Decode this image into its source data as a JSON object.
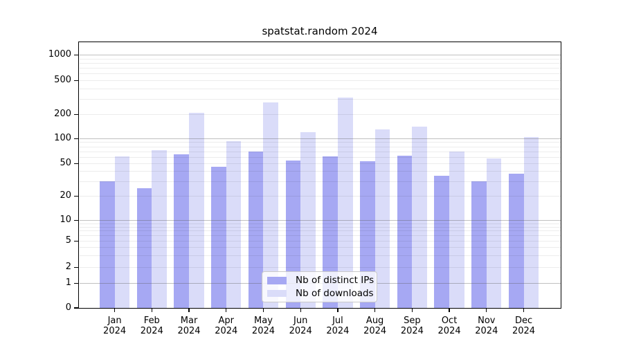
{
  "title": "spatstat.random 2024",
  "colors": {
    "distinct_ips": "#a6a8f3",
    "downloads": "#dadcf9",
    "grid_major": "rgba(90,90,90,0.38)",
    "grid_minor": "rgba(0,0,0,0.075)",
    "axis": "#000000",
    "legend_border": "#c9c9c9"
  },
  "legend": {
    "items": [
      "Nb of distinct IPs",
      "Nb of downloads"
    ]
  },
  "chart_data": {
    "type": "bar",
    "title": "spatstat.random 2024",
    "categories": [
      "Jan 2024",
      "Feb 2024",
      "Mar 2024",
      "Apr 2024",
      "May 2024",
      "Jun 2024",
      "Jul 2024",
      "Aug 2024",
      "Sep 2024",
      "Oct 2024",
      "Nov 2024",
      "Dec 2024"
    ],
    "series": [
      {
        "name": "Nb of distinct IPs",
        "color": "#a6a8f3",
        "values": [
          30,
          25,
          64,
          45,
          69,
          54,
          61,
          53,
          62,
          35,
          30,
          37
        ]
      },
      {
        "name": "Nb of downloads",
        "color": "#dadcf9",
        "values": [
          61,
          72,
          208,
          93,
          275,
          120,
          313,
          130,
          140,
          69,
          57,
          104
        ]
      }
    ],
    "xlabel": "",
    "ylabel": "",
    "yaxis": {
      "scale": "log",
      "ticks": [
        0,
        1,
        2,
        5,
        10,
        20,
        50,
        100,
        200,
        500,
        1000
      ],
      "range": [
        0,
        1400
      ]
    },
    "grid": {
      "horizontal": true,
      "major_at": [
        1,
        10,
        100,
        1000
      ],
      "minor_at_log_decades": true
    },
    "legend_position": "inside-bottom-center"
  }
}
